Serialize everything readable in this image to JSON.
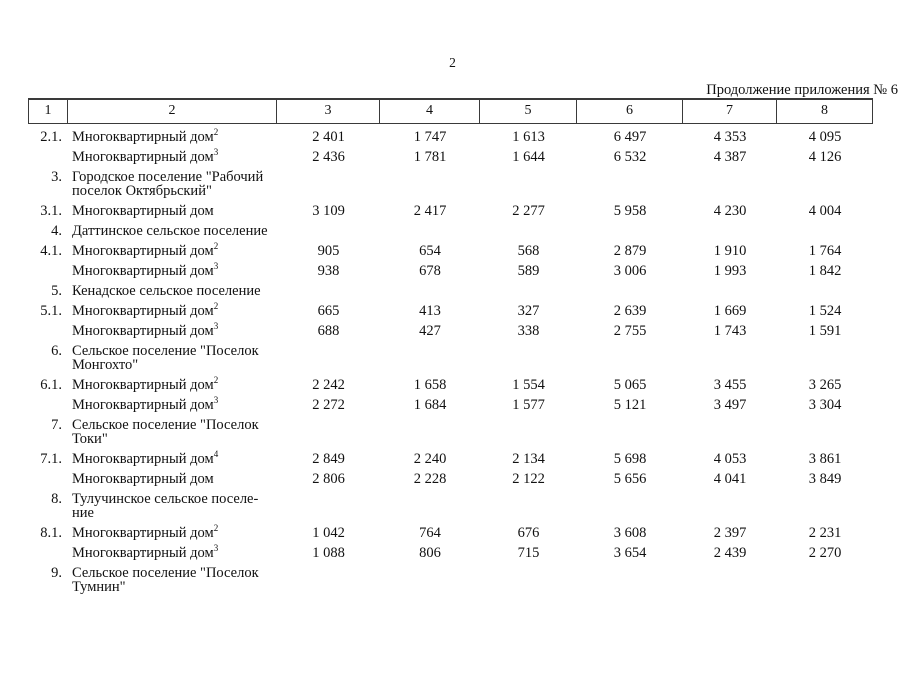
{
  "page": {
    "number": "2",
    "caption": "Продолжение приложения № 6"
  },
  "colors": {
    "background": "#ffffff",
    "text": "#111111",
    "table_border": "#3a3a3a"
  },
  "table": {
    "column_numbers": [
      "1",
      "2",
      "3",
      "4",
      "5",
      "6",
      "7",
      "8"
    ],
    "rows": [
      {
        "num": "2.1.",
        "name": "Многоквартирный дом",
        "sup": "2",
        "values": [
          "2 401",
          "1 747",
          "1 613",
          "6 497",
          "4 353",
          "4 095"
        ]
      },
      {
        "num": "",
        "name": "Многоквартирный дом",
        "sup": "3",
        "values": [
          "2 436",
          "1 781",
          "1 644",
          "6 532",
          "4 387",
          "4 126"
        ]
      },
      {
        "num": "3.",
        "name": [
          "Городское поселение \"Рабочий",
          "поселок Октябрьский\""
        ],
        "values": []
      },
      {
        "num": "3.1.",
        "name": "Многоквартирный дом",
        "values": [
          "3 109",
          "2 417",
          "2 277",
          "5 958",
          "4 230",
          "4 004"
        ]
      },
      {
        "num": "4.",
        "name": "Даттинское сельское поселение",
        "values": []
      },
      {
        "num": "4.1.",
        "name": "Многоквартирный дом",
        "sup": "2",
        "values": [
          "905",
          "654",
          "568",
          "2 879",
          "1 910",
          "1 764"
        ]
      },
      {
        "num": "",
        "name": "Многоквартирный дом",
        "sup": "3",
        "values": [
          "938",
          "678",
          "589",
          "3 006",
          "1 993",
          "1 842"
        ]
      },
      {
        "num": "5.",
        "name": "Кенадское сельское поселение",
        "values": []
      },
      {
        "num": "5.1.",
        "name": "Многоквартирный дом",
        "sup": "2",
        "values": [
          "665",
          "413",
          "327",
          "2 639",
          "1 669",
          "1 524"
        ]
      },
      {
        "num": "",
        "name": "Многоквартирный дом",
        "sup": "3",
        "values": [
          "688",
          "427",
          "338",
          "2 755",
          "1 743",
          "1 591"
        ]
      },
      {
        "num": "6.",
        "name": [
          "Сельское поселение \"Поселок",
          "Монгохто\""
        ],
        "values": []
      },
      {
        "num": "6.1.",
        "name": "Многоквартирный дом",
        "sup": "2",
        "values": [
          "2 242",
          "1 658",
          "1 554",
          "5 065",
          "3 455",
          "3 265"
        ]
      },
      {
        "num": "",
        "name": "Многоквартирный дом",
        "sup": "3",
        "values": [
          "2 272",
          "1 684",
          "1 577",
          "5 121",
          "3 497",
          "3 304"
        ]
      },
      {
        "num": "7.",
        "name": [
          "Сельское поселение \"Поселок",
          "Токи\""
        ],
        "values": []
      },
      {
        "num": "7.1.",
        "name": "Многоквартирный дом",
        "sup": "4",
        "values": [
          "2 849",
          "2 240",
          "2 134",
          "5 698",
          "4 053",
          "3 861"
        ]
      },
      {
        "num": "",
        "name": "Многоквартирный дом",
        "values": [
          "2 806",
          "2 228",
          "2 122",
          "5 656",
          "4 041",
          "3 849"
        ]
      },
      {
        "num": "8.",
        "name": [
          "Тулучинское сельское поселе-",
          "ние"
        ],
        "values": []
      },
      {
        "num": "8.1.",
        "name": "Многоквартирный дом",
        "sup": "2",
        "values": [
          "1 042",
          "764",
          "676",
          "3 608",
          "2 397",
          "2 231"
        ]
      },
      {
        "num": "",
        "name": "Многоквартирный дом",
        "sup": "3",
        "values": [
          "1 088",
          "806",
          "715",
          "3 654",
          "2 439",
          "2 270"
        ]
      },
      {
        "num": "9.",
        "name": [
          "Сельское поселение \"Поселок",
          "Тумнин\""
        ],
        "values": []
      }
    ]
  }
}
